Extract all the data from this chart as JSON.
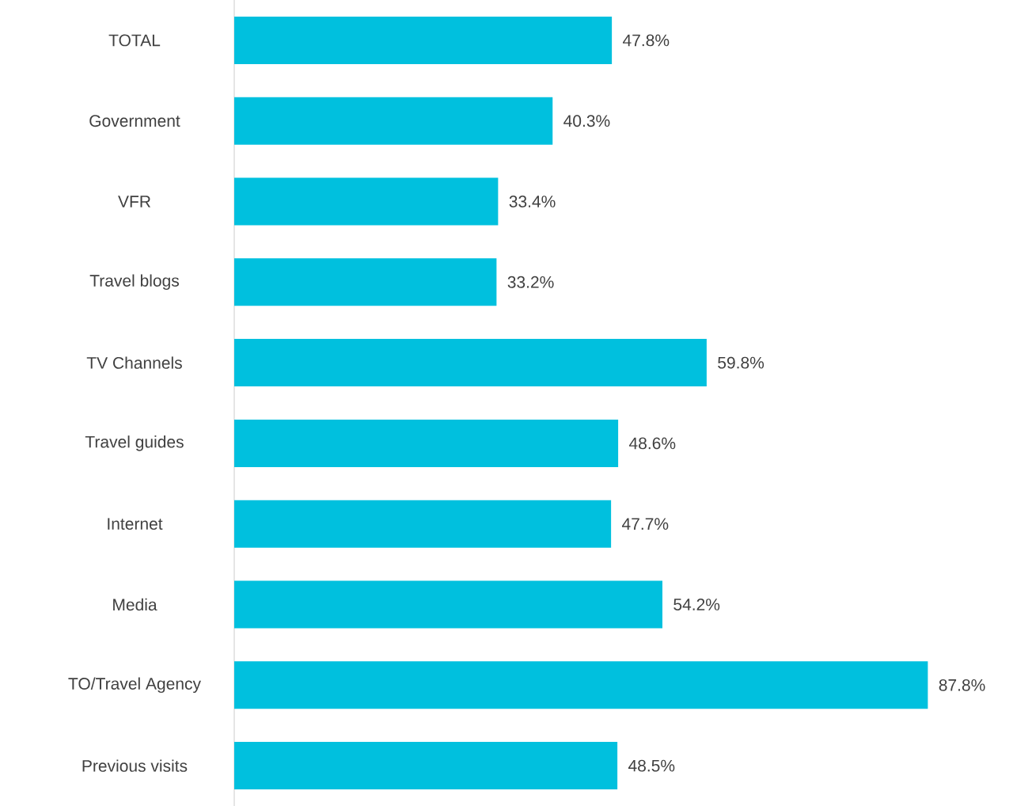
{
  "chart_data": {
    "type": "bar",
    "orientation": "horizontal",
    "color": "#00c0de",
    "categories": [
      "TOTAL",
      "Government",
      "VFR",
      "Travel blogs",
      "TV Channels",
      "Travel guides",
      "Internet",
      "Media",
      "TO/Travel Agency",
      "Previous visits"
    ],
    "values": [
      47.8,
      40.3,
      33.4,
      33.2,
      59.8,
      48.6,
      47.7,
      54.2,
      87.8,
      48.5
    ],
    "value_labels": [
      "47.8%",
      "40.3%",
      "33.4%",
      "33.2%",
      "59.8%",
      "48.6%",
      "47.7%",
      "54.2%",
      "87.8%",
      "48.5%"
    ]
  }
}
